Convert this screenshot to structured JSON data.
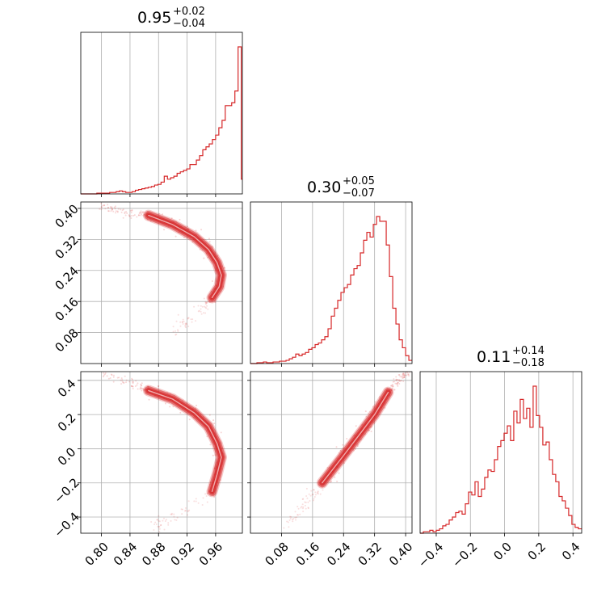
{
  "chart_data": {
    "type": "corner",
    "color": "#d62728",
    "grid": true,
    "parameters": [
      {
        "median": "0.95",
        "plus": "+0.02",
        "minus": "−0.04",
        "ticks": [
          0.8,
          0.84,
          0.88,
          0.92,
          0.96
        ],
        "tick_labels": [
          "0.80",
          "0.84",
          "0.88",
          "0.92",
          "0.96"
        ],
        "range": [
          0.771,
          0.9975
        ]
      },
      {
        "median": "0.30",
        "plus": "+0.05",
        "minus": "−0.07",
        "ticks": [
          0.08,
          0.16,
          0.24,
          0.32,
          0.4
        ],
        "tick_labels": [
          "0.08",
          "0.16",
          "0.24",
          "0.32",
          "0.40"
        ],
        "range": [
          0.0,
          0.4165
        ]
      },
      {
        "median": "0.11",
        "plus": "+0.14",
        "minus": "−0.18",
        "ticks": [
          -0.4,
          -0.2,
          0.0,
          0.2,
          0.4
        ],
        "tick_labels": [
          "−0.4",
          "−0.2",
          "0.0",
          "0.2",
          "0.4"
        ],
        "range": [
          -0.4944,
          0.4512
        ]
      }
    ],
    "histograms": [
      {
        "param": 0,
        "bins": [
          0.771,
          0.7755,
          0.78,
          0.7845,
          0.789,
          0.7935,
          0.798,
          0.8025,
          0.807,
          0.8115,
          0.816,
          0.8205,
          0.825,
          0.8295,
          0.834,
          0.8385,
          0.843,
          0.8475,
          0.852,
          0.8565,
          0.861,
          0.8655,
          0.87,
          0.8745,
          0.879,
          0.8835,
          0.888,
          0.8925,
          0.897,
          0.9015,
          0.906,
          0.9105,
          0.915,
          0.9195,
          0.924,
          0.9285,
          0.933,
          0.9375,
          0.942,
          0.9465,
          0.951,
          0.9555,
          0.96,
          0.9645,
          0.969,
          0.9735,
          0.978,
          0.9825,
          0.987,
          0.9915,
          0.996,
          0.9975
        ],
        "counts": [
          0,
          0,
          0,
          0,
          0,
          0.5,
          0.5,
          0.5,
          0.5,
          1,
          1,
          1.5,
          2,
          1.5,
          1,
          1,
          1.5,
          2.5,
          3,
          3.5,
          4,
          4.5,
          5,
          6,
          6.5,
          8,
          12,
          10,
          11,
          12,
          14,
          15,
          16,
          17,
          20,
          20,
          23,
          26,
          30,
          32,
          34,
          37,
          40,
          45,
          50,
          60,
          60,
          62,
          70,
          100,
          10
        ]
      },
      {
        "param": 1,
        "bins": [
          0.0,
          0.0083,
          0.0167,
          0.025,
          0.0333,
          0.0417,
          0.05,
          0.0583,
          0.0667,
          0.075,
          0.0833,
          0.0917,
          0.1,
          0.1083,
          0.1167,
          0.125,
          0.1333,
          0.1417,
          0.15,
          0.1583,
          0.1667,
          0.175,
          0.1833,
          0.1917,
          0.2,
          0.2083,
          0.2167,
          0.225,
          0.2333,
          0.2417,
          0.25,
          0.2583,
          0.2667,
          0.275,
          0.2833,
          0.2917,
          0.3,
          0.3083,
          0.3167,
          0.325,
          0.3333,
          0.3417,
          0.35,
          0.3583,
          0.3667,
          0.375,
          0.3833,
          0.3917,
          0.4,
          0.4083,
          0.4165
        ],
        "counts": [
          0,
          0,
          0.5,
          0.5,
          1,
          0.5,
          0.5,
          1,
          1,
          1.5,
          1.5,
          2,
          3,
          4,
          6,
          5,
          6,
          7,
          9,
          10,
          12,
          13,
          15,
          17,
          22,
          30,
          35,
          40,
          45,
          48,
          50,
          56,
          60,
          62,
          70,
          78,
          83,
          80,
          88,
          93,
          90,
          90,
          75,
          55,
          35,
          25,
          15,
          10,
          5,
          2
        ]
      },
      {
        "param": 2,
        "bins": [
          -0.4944,
          -0.4755,
          -0.4566,
          -0.4377,
          -0.4188,
          -0.3999,
          -0.381,
          -0.3621,
          -0.3432,
          -0.3243,
          -0.3054,
          -0.2865,
          -0.2676,
          -0.2487,
          -0.2298,
          -0.2109,
          -0.192,
          -0.1731,
          -0.1542,
          -0.1353,
          -0.1164,
          -0.0975,
          -0.0786,
          -0.0597,
          -0.0408,
          -0.0219,
          -0.003,
          0.0159,
          0.0348,
          0.0537,
          0.0726,
          0.0915,
          0.1104,
          0.1293,
          0.1482,
          0.1671,
          0.186,
          0.2049,
          0.2238,
          0.2427,
          0.2616,
          0.2805,
          0.2994,
          0.3183,
          0.3372,
          0.3561,
          0.375,
          0.3939,
          0.4128,
          0.4317,
          0.4512
        ],
        "counts": [
          0,
          1,
          1,
          2,
          1,
          2,
          3,
          5,
          6,
          9,
          11,
          14,
          15,
          13,
          20,
          28,
          26,
          35,
          25,
          30,
          38,
          43,
          42,
          50,
          59,
          63,
          68,
          73,
          63,
          83,
          75,
          91,
          78,
          85,
          72,
          100,
          80,
          72,
          60,
          62,
          50,
          40,
          35,
          25,
          22,
          17,
          12,
          6,
          4,
          3
        ]
      }
    ],
    "scatter_panels": [
      {
        "x_param": 0,
        "y_param": 1,
        "ridge": [
          [
            0.866,
            0.382
          ],
          [
            0.9,
            0.358
          ],
          [
            0.93,
            0.327
          ],
          [
            0.95,
            0.294
          ],
          [
            0.962,
            0.26
          ],
          [
            0.968,
            0.228
          ],
          [
            0.965,
            0.198
          ],
          [
            0.955,
            0.17
          ]
        ],
        "halo": [
          [
            0.8,
            0.405
          ],
          [
            0.84,
            0.39
          ],
          [
            0.866,
            0.382
          ]
        ],
        "tail": [
          [
            0.955,
            0.17
          ],
          [
            0.94,
            0.14
          ],
          [
            0.92,
            0.11
          ],
          [
            0.9,
            0.08
          ]
        ],
        "ridge_width": 0.012
      },
      {
        "x_param": 0,
        "y_param": 2,
        "ridge": [
          [
            0.866,
            0.34
          ],
          [
            0.9,
            0.29
          ],
          [
            0.93,
            0.21
          ],
          [
            0.95,
            0.13
          ],
          [
            0.962,
            0.03
          ],
          [
            0.968,
            -0.05
          ],
          [
            0.962,
            -0.15
          ],
          [
            0.955,
            -0.25
          ]
        ],
        "halo": [
          [
            0.8,
            0.45
          ],
          [
            0.84,
            0.39
          ],
          [
            0.866,
            0.34
          ]
        ],
        "tail": [
          [
            0.955,
            -0.25
          ],
          [
            0.93,
            -0.33
          ],
          [
            0.9,
            -0.4
          ],
          [
            0.87,
            -0.46
          ]
        ],
        "ridge_width": 0.035
      },
      {
        "x_param": 1,
        "y_param": 2,
        "ridge": [
          [
            0.185,
            -0.2
          ],
          [
            0.24,
            -0.04
          ],
          [
            0.28,
            0.08
          ],
          [
            0.32,
            0.2
          ],
          [
            0.355,
            0.33
          ]
        ],
        "halo": [
          [
            0.355,
            0.33
          ],
          [
            0.38,
            0.4
          ],
          [
            0.41,
            0.45
          ]
        ],
        "tail": [
          [
            0.185,
            -0.2
          ],
          [
            0.15,
            -0.3
          ],
          [
            0.12,
            -0.38
          ],
          [
            0.09,
            -0.45
          ]
        ],
        "ridge_width": 0.03
      }
    ]
  }
}
